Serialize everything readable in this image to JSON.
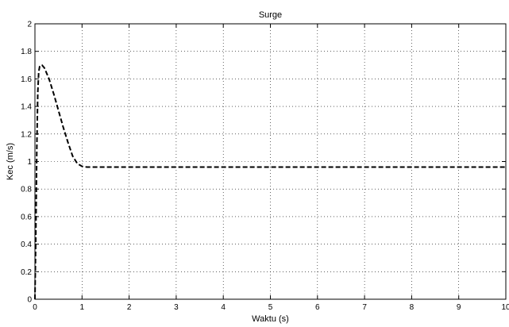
{
  "chart_data": {
    "type": "line",
    "title": "Surge",
    "xlabel": "Waktu (s)",
    "ylabel": "Kec (m/s)",
    "xlim": [
      0,
      10
    ],
    "ylim": [
      0,
      2
    ],
    "x_ticks": [
      "0",
      "1",
      "2",
      "3",
      "4",
      "5",
      "6",
      "7",
      "8",
      "9",
      "10"
    ],
    "y_ticks": [
      "0",
      "0.2",
      "0.4",
      "0.6",
      "0.8",
      "1",
      "1.2",
      "1.4",
      "1.6",
      "1.8",
      "2"
    ],
    "grid": true,
    "line_style": "dashed",
    "line_color": "#000000",
    "series": [
      {
        "x": [
          0,
          0.02,
          0.04,
          0.06,
          0.08,
          0.1,
          0.12,
          0.15,
          0.2,
          0.3,
          0.4,
          0.5,
          0.6,
          0.7,
          0.8,
          0.9,
          1.0,
          1.1,
          1.3,
          2,
          4,
          6,
          8,
          10
        ],
        "y": [
          0,
          0.5,
          1.1,
          1.5,
          1.65,
          1.69,
          1.7,
          1.7,
          1.68,
          1.6,
          1.49,
          1.37,
          1.25,
          1.14,
          1.04,
          0.985,
          0.965,
          0.96,
          0.96,
          0.96,
          0.96,
          0.96,
          0.96,
          0.96
        ]
      }
    ]
  }
}
